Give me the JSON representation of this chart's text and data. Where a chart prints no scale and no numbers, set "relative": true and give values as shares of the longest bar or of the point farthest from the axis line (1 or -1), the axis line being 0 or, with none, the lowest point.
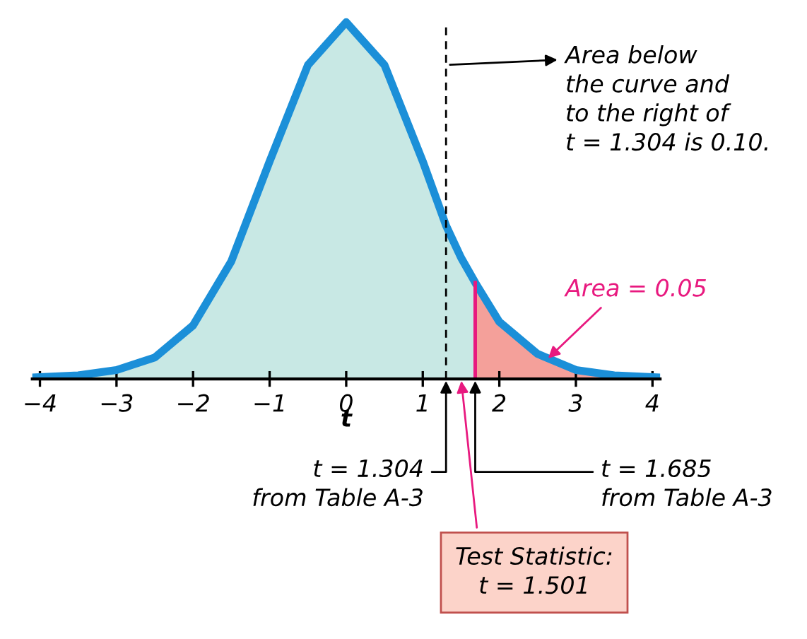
{
  "chart_data": {
    "type": "area",
    "relative": true,
    "xlabel": "t",
    "series": [
      {
        "color": "#c8e8e4",
        "x": [
          -4.1,
          -3.5,
          -3,
          -2.5,
          -2,
          -1.5,
          -1,
          -0.5,
          0,
          0.5,
          1,
          1.304,
          1.5,
          1.685
        ],
        "values": [
          0.004,
          0.01,
          0.025,
          0.06,
          0.15,
          0.33,
          0.61,
          0.88,
          1,
          0.88,
          0.61,
          0.43,
          0.34,
          0.27
        ]
      },
      {
        "color": "#f4a09a",
        "x": [
          1.685,
          2,
          2.5,
          3,
          3.5,
          4.1
        ],
        "values": [
          0.27,
          0.16,
          0.07,
          0.025,
          0.01,
          0.004
        ]
      },
      {
        "type": "line",
        "color": "#1b8fd8",
        "x": [
          -4.1,
          -3.5,
          -3,
          -2.5,
          -2,
          -1.5,
          -1,
          -0.5,
          0,
          0.5,
          1,
          1.304,
          1.5,
          1.685,
          2,
          2.5,
          3,
          3.5,
          4.1
        ],
        "values": [
          0.004,
          0.01,
          0.025,
          0.06,
          0.15,
          0.33,
          0.61,
          0.88,
          1,
          0.88,
          0.61,
          0.43,
          0.34,
          0.27,
          0.16,
          0.07,
          0.025,
          0.01,
          0.004
        ]
      }
    ],
    "xlim": [
      -4.1,
      4.1
    ],
    "xticks": [
      {
        "value": -4,
        "label": "−4"
      },
      {
        "value": -3,
        "label": "−3"
      },
      {
        "value": -2,
        "label": "−2"
      },
      {
        "value": -1,
        "label": "−1"
      },
      0,
      1,
      2,
      3,
      4
    ],
    "ref_lines": [
      {
        "axis": "x",
        "value": 1.304,
        "color": "#000000",
        "line_style": "dashed"
      },
      {
        "axis": "x",
        "value": 1.685,
        "color": "#e8197f",
        "line_style": "solid"
      }
    ],
    "annotations": [
      {
        "text": "Area below\nthe curve and\nto the right of\nt = 1.304 is 0.10.",
        "x": 1.304,
        "y": 0.88
      },
      {
        "text": "Area = 0.05",
        "x": 2.6,
        "y": 0.05
      },
      {
        "text": "t = 1.304\nfrom Table A-3",
        "x": 1.304,
        "y": 0
      },
      {
        "text": "t = 1.685\nfrom Table A-3",
        "x": 1.685,
        "y": 0
      },
      {
        "text": "Test Statistic:\nt = 1.501",
        "x": 1.501,
        "y": 0
      }
    ],
    "grid": false,
    "legend": false
  }
}
